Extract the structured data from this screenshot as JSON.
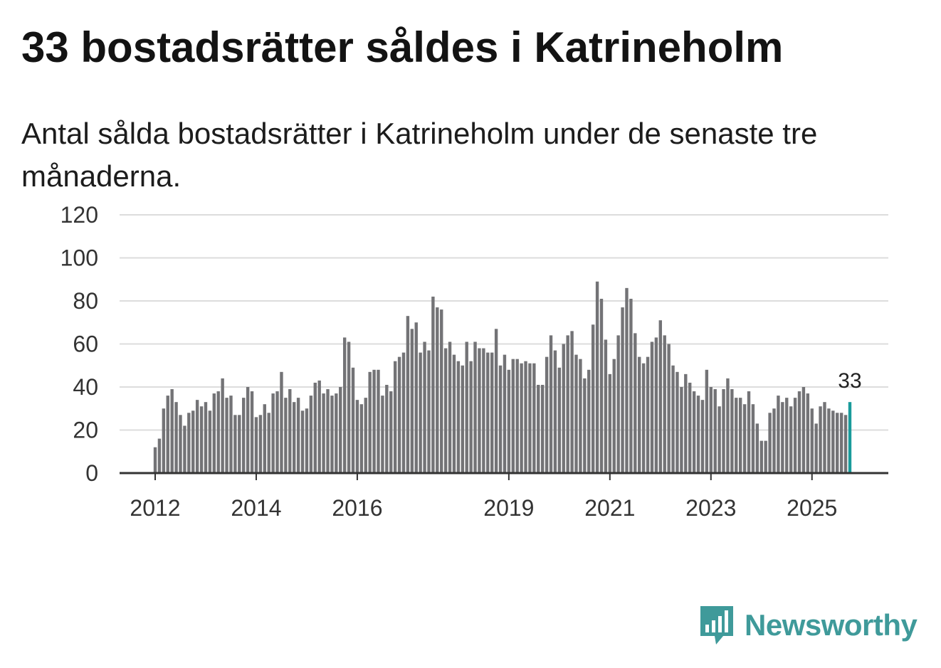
{
  "title": "33 bostadsrätter såldes i Katrineholm",
  "subtitle": "Antal sålda bostadsrätter i Katrineholm under de senaste tre månaderna.",
  "brand": {
    "name": "Newsworthy",
    "logo_icon": "bar-chart-speech-bubble-icon"
  },
  "colors": {
    "bar": "#737376",
    "highlight": "#1a9b9b",
    "grid": "#dcdcdc",
    "axis": "#333333",
    "brand": "#3f9a9a"
  },
  "chart_data": {
    "type": "bar",
    "title": "33 bostadsrätter såldes i Katrineholm",
    "xlabel": "",
    "ylabel": "",
    "ylim": [
      0,
      120
    ],
    "yticks": [
      0,
      20,
      40,
      60,
      80,
      100,
      120
    ],
    "start": "2012-01",
    "frequency": "monthly",
    "xticks": [
      {
        "label": "2012",
        "index": 0
      },
      {
        "label": "2014",
        "index": 24
      },
      {
        "label": "2016",
        "index": 48
      },
      {
        "label": "2019",
        "index": 84
      },
      {
        "label": "2021",
        "index": 108
      },
      {
        "label": "2023",
        "index": 132
      },
      {
        "label": "2025",
        "index": 156
      }
    ],
    "highlight_label": "33",
    "values": [
      12,
      16,
      30,
      36,
      39,
      33,
      27,
      22,
      28,
      29,
      34,
      31,
      33,
      29,
      37,
      38,
      44,
      35,
      36,
      27,
      27,
      35,
      40,
      38,
      26,
      27,
      32,
      28,
      37,
      38,
      47,
      35,
      39,
      33,
      35,
      29,
      30,
      36,
      42,
      43,
      37,
      39,
      36,
      37,
      40,
      63,
      61,
      49,
      34,
      32,
      35,
      47,
      48,
      48,
      36,
      41,
      38,
      52,
      54,
      56,
      73,
      67,
      70,
      56,
      61,
      57,
      82,
      77,
      76,
      58,
      61,
      55,
      52,
      50,
      61,
      52,
      61,
      58,
      58,
      56,
      56,
      67,
      50,
      55,
      48,
      53,
      53,
      51,
      52,
      51,
      51,
      41,
      41,
      54,
      64,
      57,
      49,
      60,
      64,
      66,
      55,
      53,
      44,
      48,
      69,
      89,
      81,
      62,
      46,
      53,
      64,
      77,
      86,
      81,
      65,
      54,
      51,
      54,
      61,
      63,
      71,
      64,
      60,
      50,
      47,
      40,
      46,
      42,
      38,
      36,
      34,
      48,
      40,
      39,
      31,
      39,
      44,
      39,
      35,
      35,
      32,
      38,
      32,
      23,
      15,
      15,
      28,
      30,
      36,
      33,
      35,
      31,
      35,
      38,
      40,
      37,
      30,
      23,
      31,
      33,
      30,
      29,
      28,
      28,
      27,
      33
    ]
  }
}
